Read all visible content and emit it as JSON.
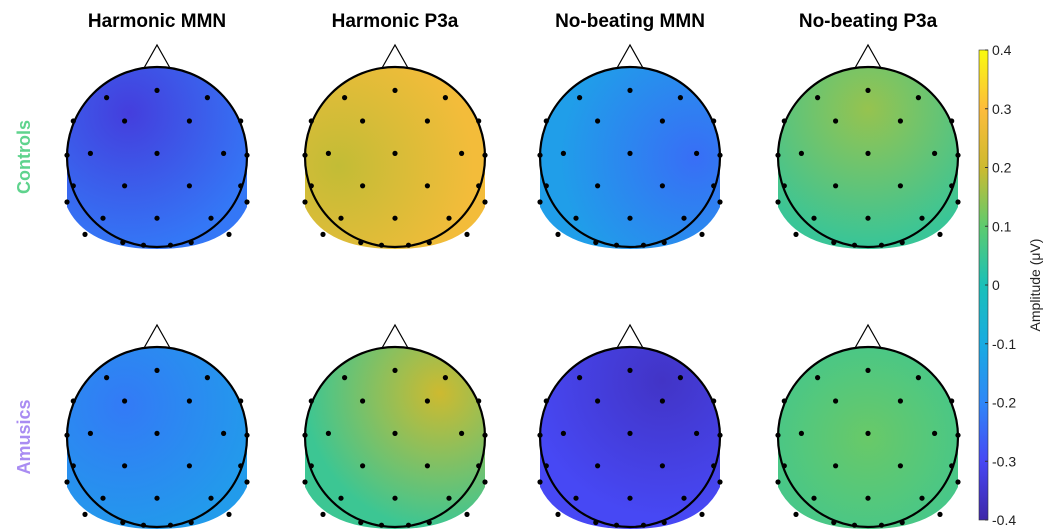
{
  "chart_data": {
    "type": "heatmap",
    "subtype": "eeg-topographic-maps",
    "columns": [
      "Harmonic MMN",
      "Harmonic P3a",
      "No-beating MMN",
      "No-beating P3a"
    ],
    "rows": [
      {
        "label": "Controls",
        "color": "#5fd38d"
      },
      {
        "label": "Amusics",
        "color": "#a98cf2"
      }
    ],
    "maps": [
      {
        "row": "Controls",
        "column": "Harmonic MMN",
        "mean_amplitude": -0.26,
        "gradient": "front-left minimum near -0.33"
      },
      {
        "row": "Controls",
        "column": "Harmonic P3a",
        "mean_amplitude": 0.25,
        "gradient": "left-front lower near 0.19"
      },
      {
        "row": "Controls",
        "column": "No-beating MMN",
        "mean_amplitude": -0.17,
        "gradient": "right side lower near -0.24"
      },
      {
        "row": "Controls",
        "column": "No-beating P3a",
        "mean_amplitude": 0.08,
        "gradient": "frontal maximum near 0.15"
      },
      {
        "row": "Amusics",
        "column": "Harmonic MMN",
        "mean_amplitude": -0.17,
        "gradient": "front-left lower near -0.22"
      },
      {
        "row": "Amusics",
        "column": "Harmonic P3a",
        "mean_amplitude": 0.1,
        "gradient": "right-front maximum near 0.2"
      },
      {
        "row": "Amusics",
        "column": "No-beating MMN",
        "mean_amplitude": -0.32,
        "gradient": "front-right minimum near -0.36"
      },
      {
        "row": "Amusics",
        "column": "No-beating P3a",
        "mean_amplitude": 0.07,
        "gradient": "central maximum near 0.11"
      }
    ],
    "electrode_count": 32,
    "colorbar": {
      "colormap": "parula",
      "range": [
        -0.4,
        0.4
      ],
      "ticks": [
        "0.4",
        "0.3",
        "0.2",
        "0.1",
        "0",
        "-0.1",
        "-0.2",
        "-0.3",
        "-0.4"
      ],
      "label": "Amplitude (μV)",
      "placement": "right"
    }
  }
}
